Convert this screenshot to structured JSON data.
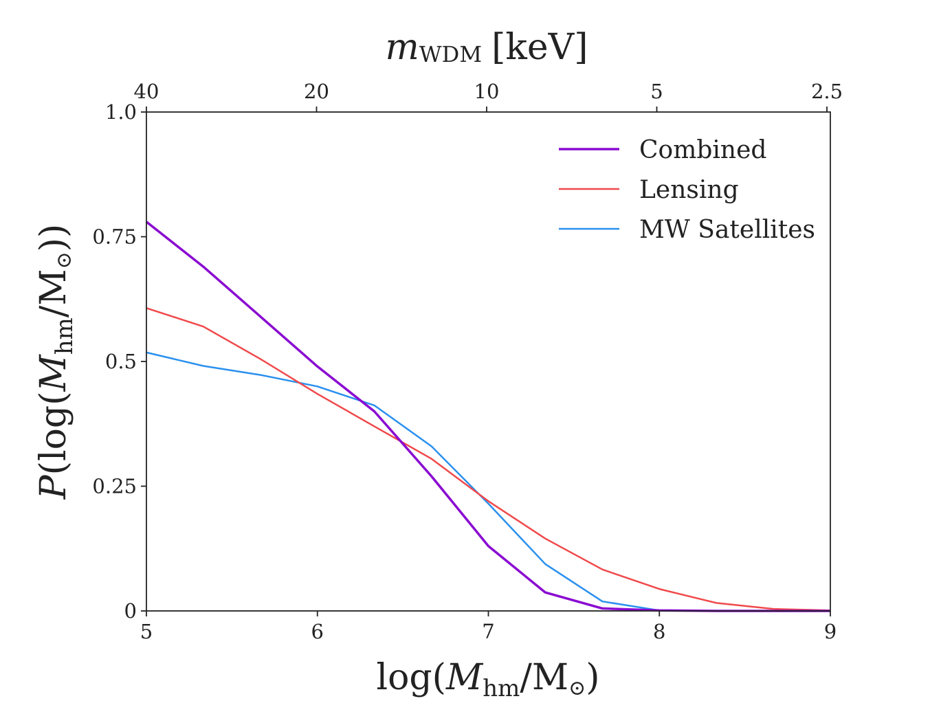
{
  "chart_data": {
    "type": "line",
    "x": [
      5.0,
      5.333,
      5.667,
      6.0,
      6.333,
      6.667,
      7.0,
      7.333,
      7.667,
      8.0,
      8.333,
      8.667,
      9.0
    ],
    "series": [
      {
        "name": "Combined",
        "color": "#8a0bd1",
        "values": [
          0.78,
          0.69,
          0.59,
          0.49,
          0.4,
          0.27,
          0.13,
          0.037,
          0.005,
          0.001,
          0.0,
          0.0,
          0.0
        ]
      },
      {
        "name": "Lensing",
        "color": "#f0494b",
        "values": [
          0.607,
          0.57,
          0.505,
          0.435,
          0.37,
          0.305,
          0.22,
          0.145,
          0.083,
          0.044,
          0.016,
          0.004,
          0.001
        ]
      },
      {
        "name": "MW Satellites",
        "color": "#2a90ee",
        "values": [
          0.518,
          0.491,
          0.473,
          0.45,
          0.412,
          0.33,
          0.215,
          0.094,
          0.019,
          0.001,
          0.0,
          0.0,
          0.0
        ]
      }
    ],
    "xlim": [
      5,
      9
    ],
    "ylim": [
      0,
      1.0
    ],
    "xticks": [
      5,
      6,
      7,
      8,
      9
    ],
    "xtick_labels": [
      "5",
      "6",
      "7",
      "8",
      "9"
    ],
    "yticks": [
      0,
      0.25,
      0.5,
      0.75,
      1.0
    ],
    "ytick_labels": [
      "0",
      "0.25",
      "0.5",
      "0.75",
      "1.0"
    ],
    "top_axis": {
      "ticks_at_x": [
        5.0,
        5.995,
        6.99,
        7.985,
        8.98
      ],
      "labels": [
        "40",
        "20",
        "10",
        "5",
        "2.5"
      ],
      "label_main": "m",
      "label_sub": "WDM",
      "label_units": "[keV]"
    },
    "xlabel": {
      "pre": "log(",
      "var": "M",
      "sub": "hm",
      "post": "/M",
      "sun": "⊙",
      "close": ")"
    },
    "ylabel": {
      "var": "P",
      "pre": "(log(",
      "var2": "M",
      "sub": "hm",
      "post": "/M",
      "sun": "⊙",
      "close": "))"
    },
    "legend": {
      "placement": "top-right"
    },
    "grid": false
  }
}
